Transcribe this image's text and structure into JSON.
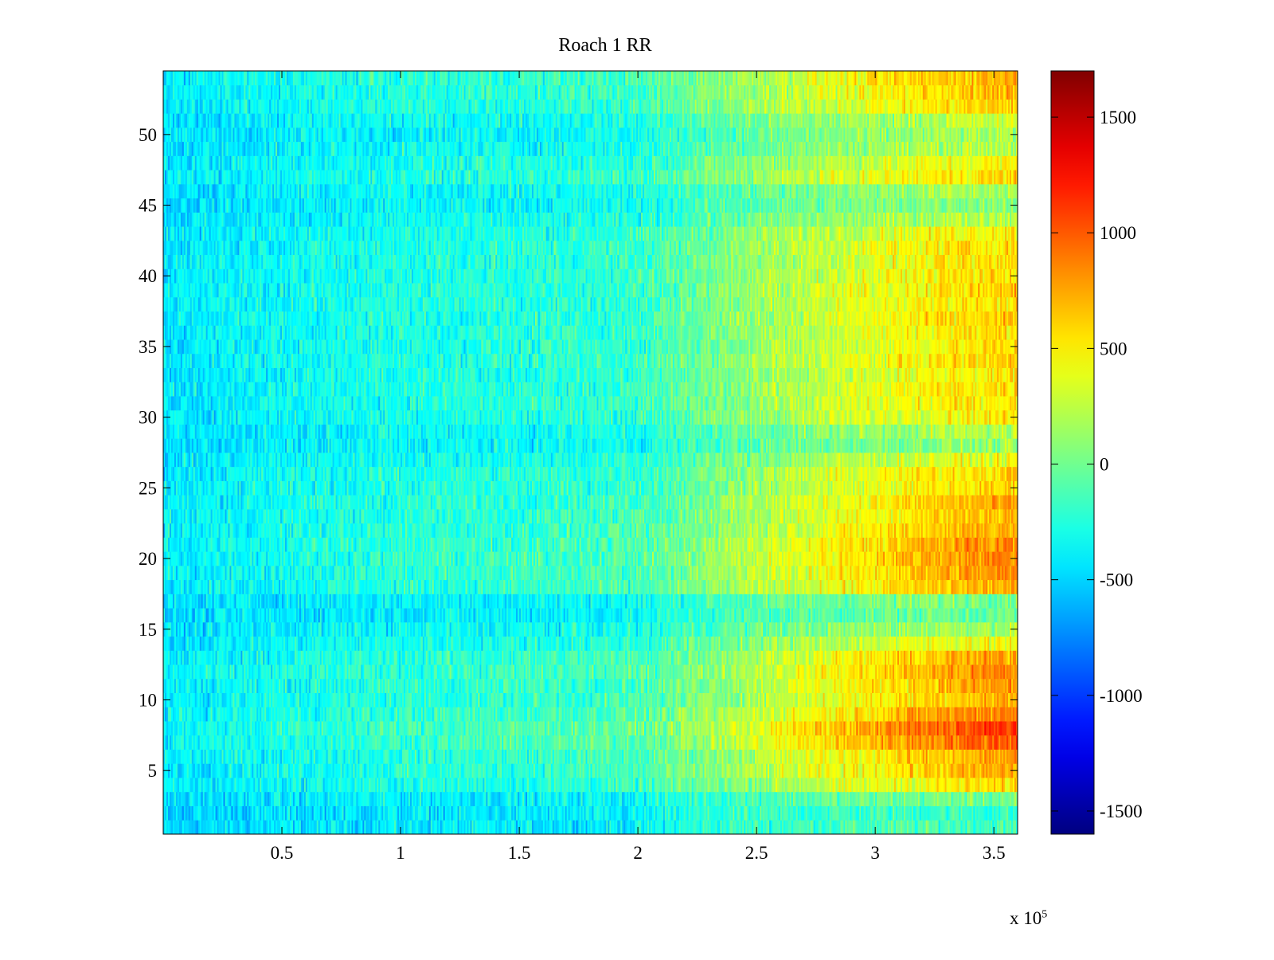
{
  "chart_data": {
    "type": "heatmap",
    "title": "Roach 1 RR",
    "xlabel": "",
    "ylabel": "",
    "x_multiplier": {
      "base": "x 10",
      "exponent": "5"
    },
    "xlim": [
      0,
      3.6
    ],
    "ylim": [
      0.5,
      54.5
    ],
    "x_ticks": [
      0.5,
      1,
      1.5,
      2,
      2.5,
      3,
      3.5
    ],
    "x_tick_labels": [
      "0.5",
      "1",
      "1.5",
      "2",
      "2.5",
      "3",
      "3.5"
    ],
    "y_ticks": [
      5,
      10,
      15,
      20,
      25,
      30,
      35,
      40,
      45,
      50
    ],
    "y_tick_labels": [
      "5",
      "10",
      "15",
      "20",
      "25",
      "30",
      "35",
      "40",
      "45",
      "50"
    ],
    "rows": 54,
    "colormap": "jet",
    "colorbar": {
      "range": [
        -1600,
        1700
      ],
      "ticks": [
        -1500,
        -1000,
        -500,
        0,
        500,
        1000,
        1500
      ],
      "tick_labels": [
        "-1500",
        "-1000",
        "-500",
        "0",
        "500",
        "1000",
        "1500"
      ]
    },
    "x_profile_x": [
      0,
      0.5,
      1.0,
      1.5,
      2.0,
      2.2,
      2.5,
      2.8,
      3.0,
      3.3,
      3.6
    ],
    "x_profile_value": [
      -420,
      -330,
      -260,
      -230,
      -170,
      -30,
      160,
      330,
      420,
      560,
      650
    ],
    "row_offsets": [
      -260,
      -280,
      -210,
      -30,
      30,
      40,
      130,
      160,
      90,
      30,
      50,
      70,
      40,
      -60,
      -150,
      -220,
      -190,
      30,
      60,
      80,
      70,
      40,
      20,
      30,
      -20,
      -10,
      -80,
      -180,
      -140,
      -40,
      -30,
      -20,
      -40,
      -10,
      -30,
      -20,
      -10,
      -20,
      -10,
      -20,
      -30,
      -20,
      -40,
      -130,
      -180,
      -150,
      -20,
      -60,
      -130,
      -160,
      -120,
      -10,
      10,
      30
    ],
    "noise_amplitude": 230,
    "grid": false,
    "legend": "none"
  }
}
